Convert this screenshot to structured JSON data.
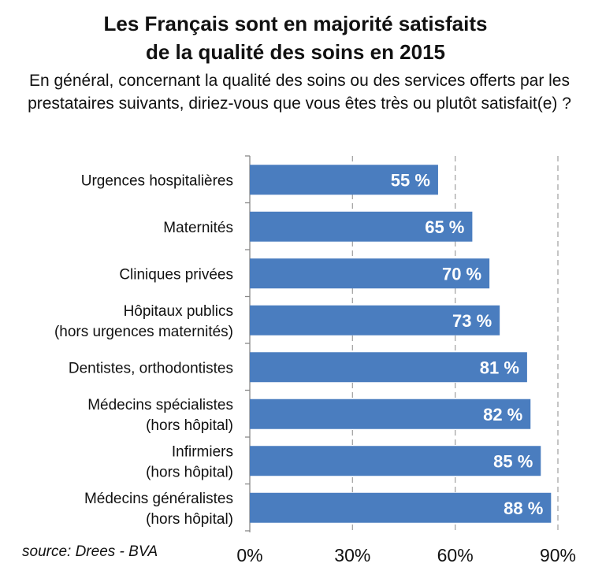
{
  "header": {
    "title_line1": "Les Français sont en majorité satisfaits",
    "title_line2": "de la qualité des soins en 2015",
    "subtitle": "En général, concernant la qualité des soins ou des services offerts par les prestataires suivants, diriez-vous que vous êtes très ou plutôt satisfait(e) ?"
  },
  "source": "source: Drees - BVA",
  "chart_data": {
    "type": "bar",
    "orientation": "horizontal",
    "categories": [
      [
        "Urgences hospitalières"
      ],
      [
        "Maternités"
      ],
      [
        "Cliniques privées"
      ],
      [
        "Hôpitaux publics",
        "(hors urgences maternités)"
      ],
      [
        "Dentistes, orthodontistes"
      ],
      [
        "Médecins spécialistes",
        "(hors hôpital)"
      ],
      [
        "Infirmiers",
        "(hors hôpital)"
      ],
      [
        "Médecins généralistes",
        "(hors hôpital)"
      ]
    ],
    "values": [
      55,
      65,
      70,
      73,
      81,
      82,
      85,
      88
    ],
    "value_labels": [
      "55 %",
      "65 %",
      "70 %",
      "73 %",
      "81 %",
      "82 %",
      "85 %",
      "88 %"
    ],
    "xlim": [
      0,
      90
    ],
    "xticks": [
      0,
      30,
      60,
      90
    ],
    "xtick_labels": [
      "0%",
      "30%",
      "60%",
      "90%"
    ],
    "grid": "vertical dashed",
    "bar_color": "#4a7dbf",
    "label_color": "#ffffff"
  }
}
